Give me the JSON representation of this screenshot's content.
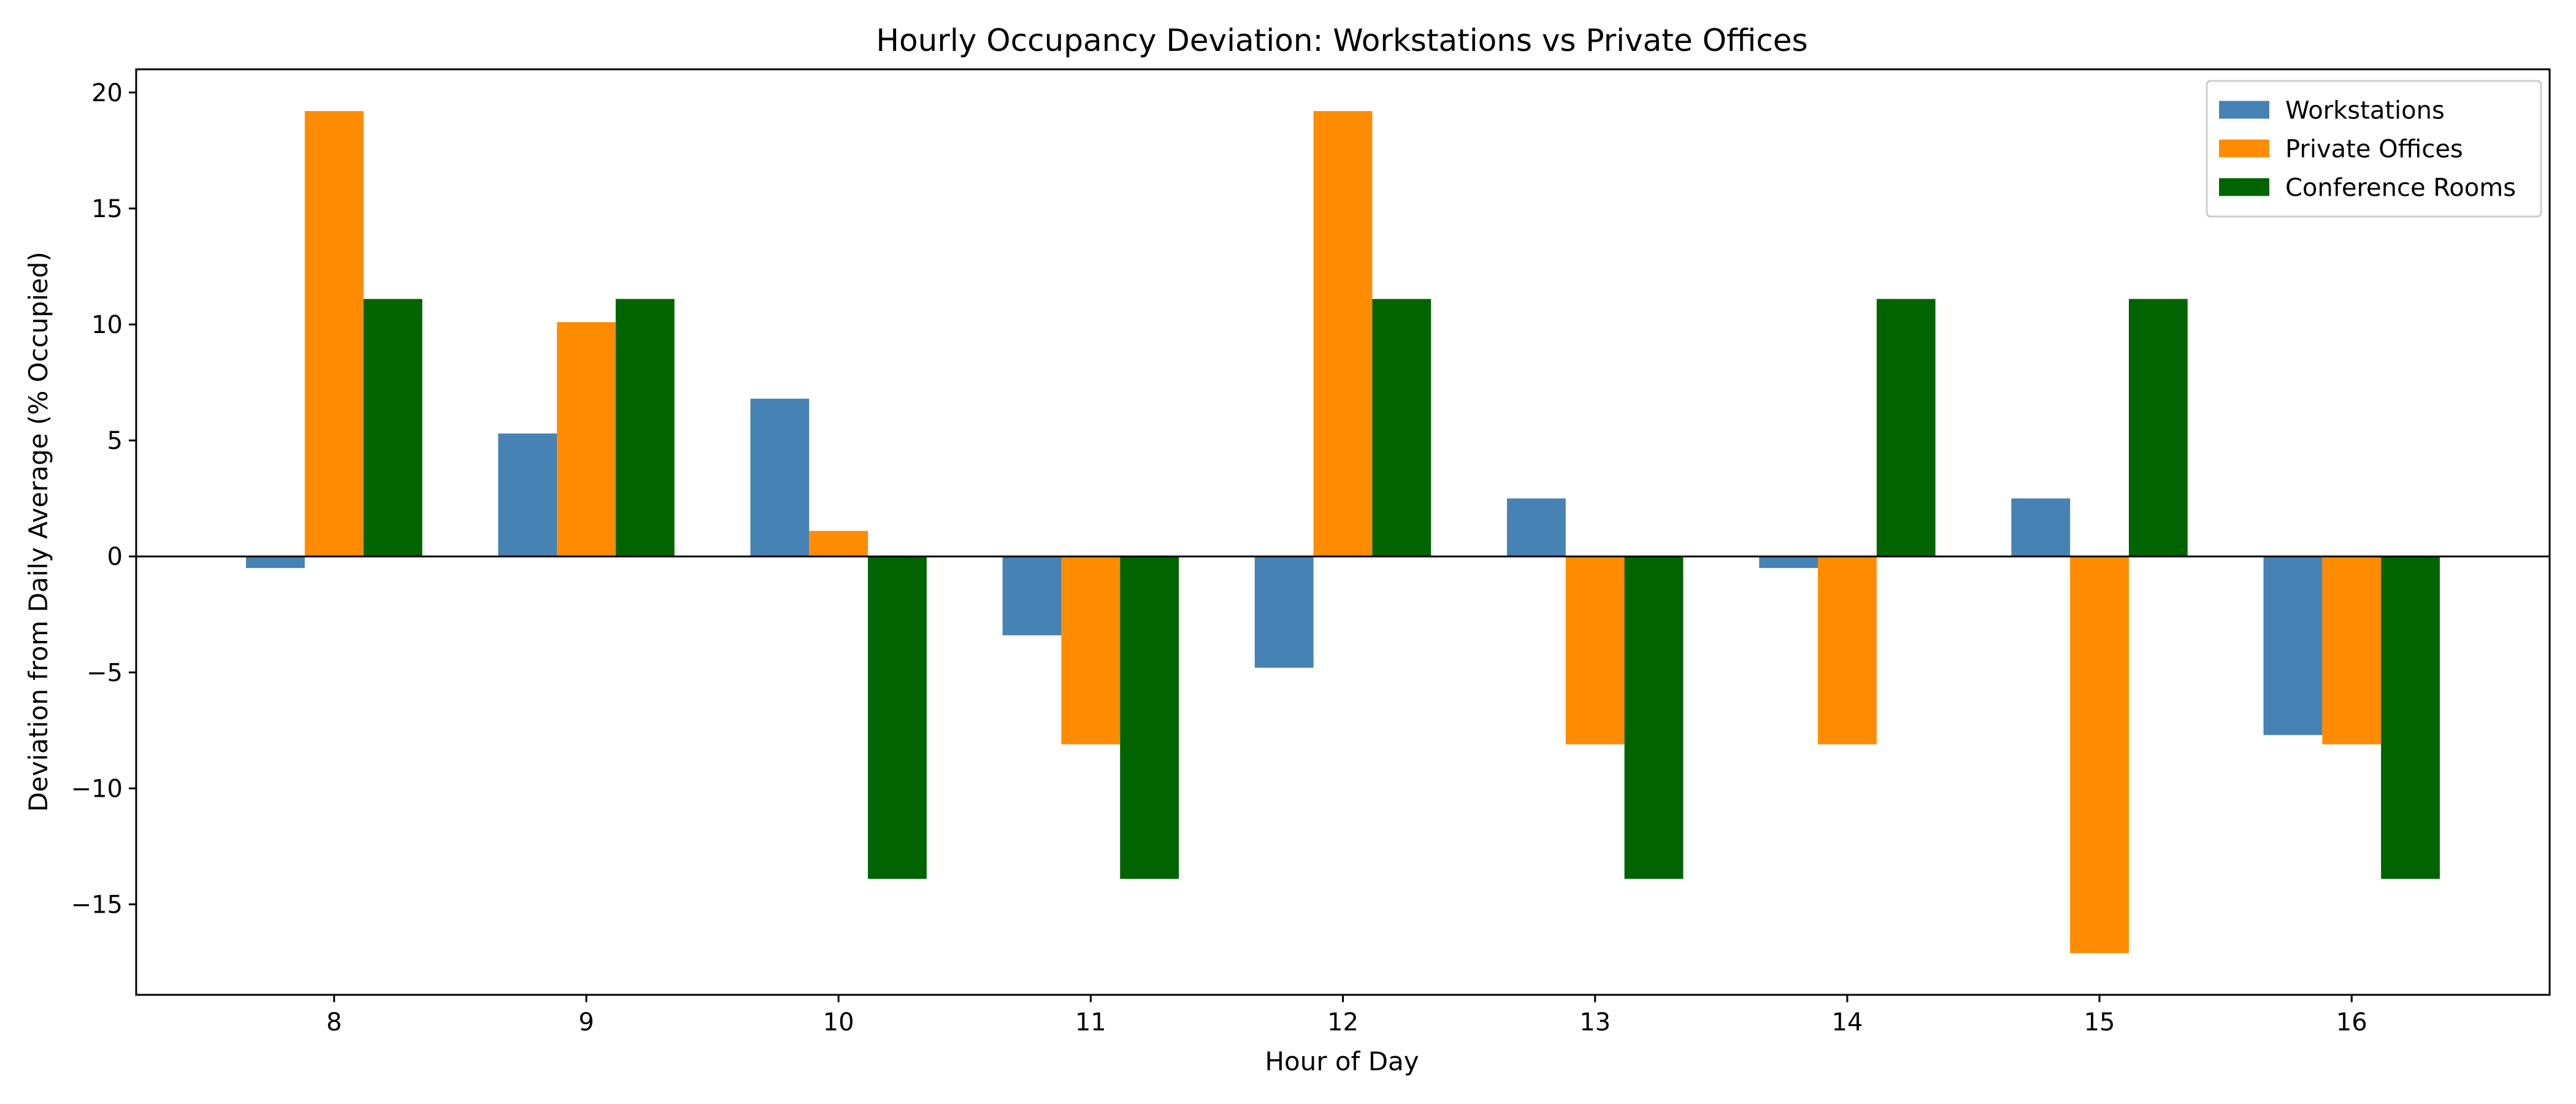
{
  "chart_data": {
    "type": "bar",
    "title": "Hourly Occupancy Deviation: Workstations vs Private Offices",
    "xlabel": "Hour of Day",
    "ylabel": "Deviation from Daily Average (% Occupied)",
    "categories": [
      "8",
      "9",
      "10",
      "11",
      "12",
      "13",
      "14",
      "15",
      "16"
    ],
    "series": [
      {
        "name": "Workstations",
        "color": "#4682b4",
        "values": [
          -0.5,
          5.3,
          6.8,
          -3.4,
          -4.8,
          2.5,
          -0.5,
          2.5,
          -7.7
        ]
      },
      {
        "name": "Private Offices",
        "color": "#ff8c00",
        "values": [
          19.2,
          10.1,
          1.1,
          -8.1,
          19.2,
          -8.1,
          -8.1,
          -17.1,
          -8.1
        ]
      },
      {
        "name": "Conference Rooms",
        "color": "#006400",
        "values": [
          11.1,
          11.1,
          -13.9,
          -13.9,
          11.1,
          -13.9,
          11.1,
          11.1,
          -13.9
        ]
      }
    ],
    "ylim": [
      -18.9,
      21.0
    ],
    "yticks": [
      -15,
      -10,
      -5,
      0,
      5,
      10,
      15,
      20
    ],
    "ytick_labels": [
      "−15",
      "−10",
      "−5",
      "0",
      "5",
      "10",
      "15",
      "20"
    ],
    "zero_line": true,
    "grid": false,
    "legend_position": "top-right"
  }
}
